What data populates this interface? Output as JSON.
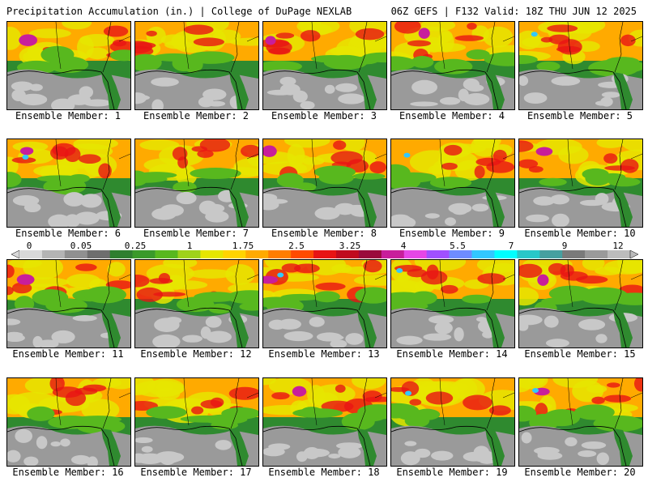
{
  "header": {
    "left": "Precipitation Accumulation (in.) | College of DuPage NEXLAB",
    "right": "06Z GEFS | F132 Valid: 18Z THU JUN 12 2025"
  },
  "members": [
    {
      "label": "Ensemble Member: 1"
    },
    {
      "label": "Ensemble Member: 2"
    },
    {
      "label": "Ensemble Member: 3"
    },
    {
      "label": "Ensemble Member: 4"
    },
    {
      "label": "Ensemble Member: 5"
    },
    {
      "label": "Ensemble Member: 6"
    },
    {
      "label": "Ensemble Member: 7"
    },
    {
      "label": "Ensemble Member: 8"
    },
    {
      "label": "Ensemble Member: 9"
    },
    {
      "label": "Ensemble Member: 10"
    },
    {
      "label": "Ensemble Member: 11"
    },
    {
      "label": "Ensemble Member: 12"
    },
    {
      "label": "Ensemble Member: 13"
    },
    {
      "label": "Ensemble Member: 14"
    },
    {
      "label": "Ensemble Member: 15"
    },
    {
      "label": "Ensemble Member: 16"
    },
    {
      "label": "Ensemble Member: 17"
    },
    {
      "label": "Ensemble Member: 18"
    },
    {
      "label": "Ensemble Member: 19"
    },
    {
      "label": "Ensemble Member: 20"
    }
  ],
  "colorbar": {
    "ticks": [
      "0",
      "0.05",
      "0.25",
      "1",
      "1.75",
      "2.5",
      "3.25",
      "4",
      "5.5",
      "7",
      "9",
      "12"
    ],
    "colors": [
      "#d9d9d9",
      "#b4b4b4",
      "#909090",
      "#6e6e6e",
      "#2f7f2f",
      "#3a9a2a",
      "#58b81e",
      "#9fd21a",
      "#e6e600",
      "#ffd400",
      "#ffaa00",
      "#ff7d00",
      "#ff4b00",
      "#e81414",
      "#c00a1e",
      "#9a0a3c",
      "#c81e9b",
      "#e646e6",
      "#a050ff",
      "#6e8cff",
      "#32c8ff",
      "#00ffff",
      "#28c8c8",
      "#46a0a0",
      "#7a7a7a",
      "#9a9a9a",
      "#bcbcbc"
    ]
  },
  "map_colors": {
    "gray_light": "#c8c8c8",
    "gray_mid": "#9a9a9a",
    "green": "#2f8a2f",
    "green_light": "#58b81e",
    "yellow": "#e6e600",
    "orange": "#ffaa00",
    "red": "#e81414",
    "magenta": "#c81e9b",
    "cyan": "#32c8ff"
  }
}
